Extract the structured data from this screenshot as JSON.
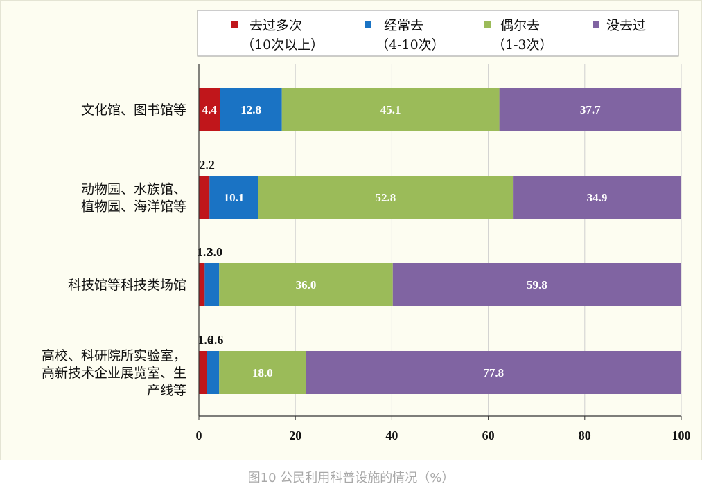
{
  "caption": "图10 公民利用科普设施的情况（%）",
  "colors": {
    "s1": "#c0161b",
    "s2": "#1a73c4",
    "s3": "#9bbb59",
    "s4": "#8064a2",
    "grid": "#cfcfcf",
    "axis": "#333333"
  },
  "chart_data": {
    "type": "bar",
    "orientation": "horizontal",
    "stacked": true,
    "xlim": [
      0,
      100
    ],
    "xticks": [
      0,
      20,
      40,
      60,
      80,
      100
    ],
    "grid": true,
    "legend_position": "top",
    "categories": [
      [
        "文化馆、图书馆等"
      ],
      [
        "动物园、水族馆、",
        "植物园、海洋馆等"
      ],
      [
        "科技馆等科技类场馆"
      ],
      [
        "高校、科研院所实验室，",
        "高新技术企业展览室、生",
        "产线等"
      ]
    ],
    "series": [
      {
        "name": "去过多次",
        "sub": "（10次以上）",
        "values": [
          4.4,
          2.2,
          1.2,
          1.6
        ]
      },
      {
        "name": "经常去",
        "sub": "（4-10次）",
        "values": [
          12.8,
          10.1,
          3.0,
          2.6
        ]
      },
      {
        "name": "偶尔去",
        "sub": "（1-3次）",
        "values": [
          45.1,
          52.8,
          36.0,
          18.0
        ]
      },
      {
        "name": "没去过",
        "sub": "",
        "values": [
          37.7,
          34.9,
          59.8,
          77.8
        ]
      }
    ]
  }
}
